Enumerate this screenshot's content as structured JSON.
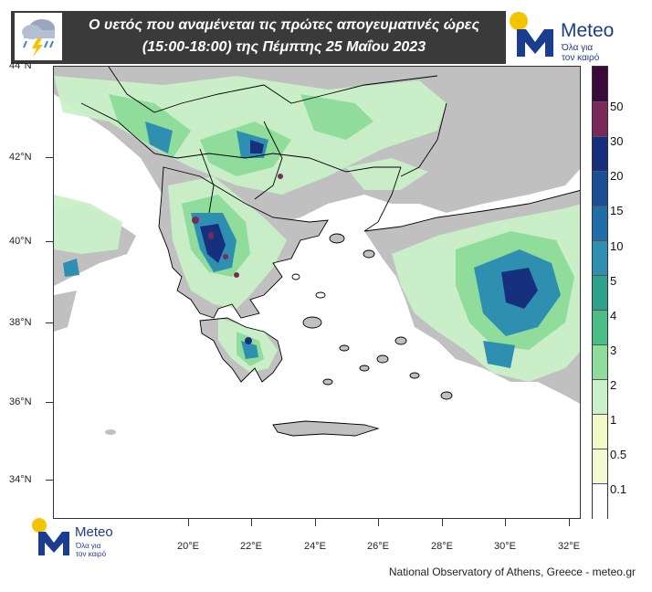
{
  "header": {
    "title_line1": "Ο υετός που αναμένεται τις πρώτες απογευματινές ώρες",
    "title_line2": "(15:00-18:00) της Πέμπτης 25 Μαΐου 2023",
    "weather_icon": "cloud-rain-lightning-icon"
  },
  "logo": {
    "name": "Meteo",
    "tagline_1": "Όλα για",
    "tagline_2": "τον καιρό",
    "sun_color": "#f5c400",
    "brand_color": "#1a3d8f"
  },
  "map": {
    "lat_labels": [
      "44°N",
      "42°N",
      "40°N",
      "38°N",
      "36°N",
      "34°N"
    ],
    "lon_labels": [
      "20°E",
      "22°E",
      "24°E",
      "26°E",
      "28°E",
      "30°E",
      "32°E"
    ],
    "land_color": "#c0c0c0",
    "sea_color": "#ffffff"
  },
  "colorbar": {
    "labels": [
      "50",
      "30",
      "20",
      "15",
      "10",
      "5",
      "4",
      "3",
      "2",
      "1",
      "0.5",
      "0.1"
    ],
    "colors": [
      "#3a0a3a",
      "#7a2a5a",
      "#16307e",
      "#1a4f96",
      "#1f6ea8",
      "#2f8fb0",
      "#2fa08a",
      "#4bbd86",
      "#8fdc9b",
      "#c9f0c8",
      "#f2f9c6",
      "#f4f9d4",
      "#ffffff"
    ]
  },
  "credit": "National Observatory of Athens, Greece - meteo.gr"
}
